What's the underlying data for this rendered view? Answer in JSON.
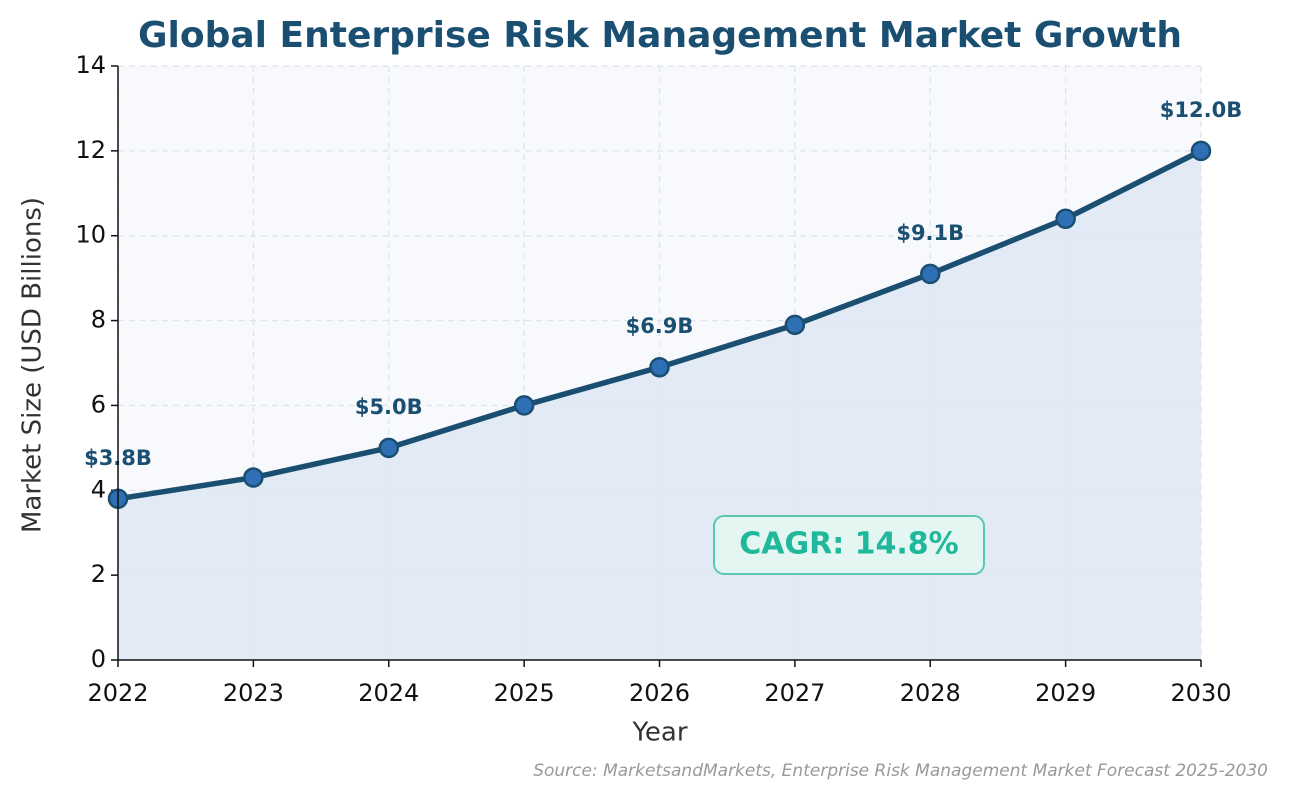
{
  "chart_data": {
    "type": "line",
    "title": "Global Enterprise Risk Management Market Growth",
    "x_label": "Year",
    "y_label": "Market Size (USD Billions)",
    "x": [
      2022,
      2023,
      2024,
      2025,
      2026,
      2027,
      2028,
      2029,
      2030
    ],
    "values": [
      3.8,
      4.3,
      5.0,
      6.0,
      6.9,
      7.9,
      9.1,
      10.4,
      12.0
    ],
    "value_labels": [
      "$3.8B",
      null,
      "$5.0B",
      null,
      "$6.9B",
      null,
      "$9.1B",
      null,
      "$12.0B"
    ],
    "color": "#1b4f72",
    "marker_color": "#2e6fb5",
    "area_color": "#dfe9f4",
    "xlim": [
      2022,
      2030
    ],
    "xticks": [
      2022,
      2023,
      2024,
      2025,
      2026,
      2027,
      2028,
      2029,
      2030
    ],
    "ylim": [
      0,
      14
    ],
    "yticks": [
      0,
      2,
      4,
      6,
      8,
      10,
      12,
      14
    ],
    "grid": true,
    "annotation": "CAGR: 14.8%",
    "source": "Source: MarketsandMarkets, Enterprise Risk Management Market Forecast 2025-2030"
  }
}
